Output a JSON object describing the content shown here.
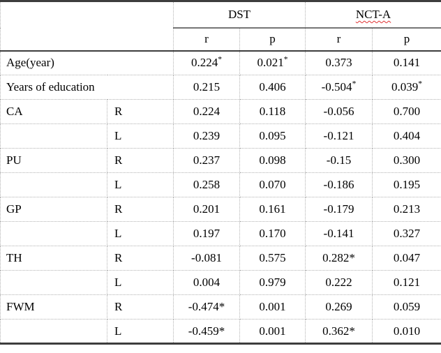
{
  "table": {
    "groups": [
      {
        "label": "DST",
        "misspelled": false
      },
      {
        "label": "NCT-A",
        "misspelled": true
      }
    ],
    "subheaders": [
      "r",
      "p",
      "r",
      "p"
    ],
    "rows": [
      {
        "label": "Age(year)",
        "label_span": 2,
        "side": "",
        "cells": [
          {
            "v": "0.224",
            "sup": true
          },
          {
            "v": "0.021",
            "sup": true
          },
          {
            "v": "0.373"
          },
          {
            "v": "0.141"
          }
        ]
      },
      {
        "label": "Years of education",
        "label_span": 2,
        "side": "",
        "cells": [
          {
            "v": "0.215"
          },
          {
            "v": "0.406"
          },
          {
            "v": "-0.504",
            "sup": true
          },
          {
            "v": "0.039",
            "sup": true
          }
        ]
      },
      {
        "label": "CA",
        "label_span": 1,
        "side": "R",
        "cells": [
          {
            "v": "0.224"
          },
          {
            "v": "0.118"
          },
          {
            "v": "-0.056"
          },
          {
            "v": "0.700"
          }
        ]
      },
      {
        "label": "",
        "label_span": 1,
        "side": "L",
        "cells": [
          {
            "v": "0.239"
          },
          {
            "v": "0.095"
          },
          {
            "v": "-0.121"
          },
          {
            "v": "0.404"
          }
        ]
      },
      {
        "label": "PU",
        "label_span": 1,
        "side": "R",
        "cells": [
          {
            "v": "0.237"
          },
          {
            "v": "0.098"
          },
          {
            "v": "-0.15"
          },
          {
            "v": "0.300"
          }
        ]
      },
      {
        "label": "",
        "label_span": 1,
        "side": "L",
        "cells": [
          {
            "v": "0.258"
          },
          {
            "v": "0.070"
          },
          {
            "v": "-0.186"
          },
          {
            "v": "0.195"
          }
        ]
      },
      {
        "label": "GP",
        "label_span": 1,
        "side": "R",
        "cells": [
          {
            "v": "0.201"
          },
          {
            "v": "0.161"
          },
          {
            "v": "-0.179"
          },
          {
            "v": "0.213"
          }
        ]
      },
      {
        "label": "",
        "label_span": 1,
        "side": "L",
        "cells": [
          {
            "v": "0.197"
          },
          {
            "v": "0.170"
          },
          {
            "v": "-0.141"
          },
          {
            "v": "0.327"
          }
        ]
      },
      {
        "label": "TH",
        "label_span": 1,
        "side": "R",
        "cells": [
          {
            "v": "-0.081"
          },
          {
            "v": "0.575"
          },
          {
            "v": "0.282",
            "star": true
          },
          {
            "v": "0.047"
          }
        ]
      },
      {
        "label": "",
        "label_span": 1,
        "side": "L",
        "cells": [
          {
            "v": "0.004"
          },
          {
            "v": "0.979"
          },
          {
            "v": "0.222"
          },
          {
            "v": "0.121"
          }
        ]
      },
      {
        "label": "FWM",
        "label_span": 1,
        "side": "R",
        "cells": [
          {
            "v": "-0.474",
            "star": true
          },
          {
            "v": "0.001"
          },
          {
            "v": "0.269"
          },
          {
            "v": "0.059"
          }
        ]
      },
      {
        "label": "",
        "label_span": 1,
        "side": "L",
        "cells": [
          {
            "v": "-0.459",
            "star": true
          },
          {
            "v": "0.001"
          },
          {
            "v": "0.362",
            "star": true
          },
          {
            "v": "0.010"
          }
        ]
      }
    ],
    "significance_marker": "*",
    "colors": {
      "grid_dotted": "#b2b2b2",
      "rule_dark": "#3d3d3d",
      "rule_group_underline": "#757575",
      "spellcheck_underline": "#e03131",
      "text": "#000000",
      "background": "#ffffff"
    }
  }
}
